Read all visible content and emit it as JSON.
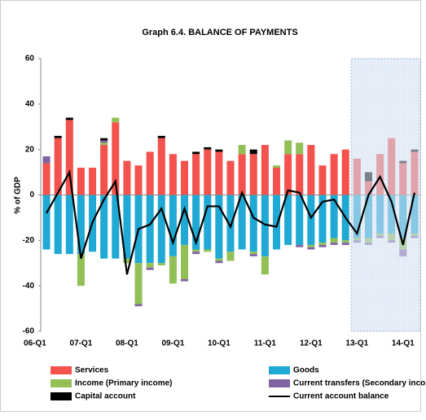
{
  "chart_data": {
    "type": "stacked-bar-line",
    "title": "Graph 6.4. BALANCE OF PAYMENTS",
    "y_label": "% of GDP",
    "categories": [
      "06-Q1",
      null,
      null,
      null,
      "07-Q1",
      null,
      null,
      null,
      "08-Q1",
      null,
      null,
      null,
      "09-Q1",
      null,
      null,
      null,
      "10-Q1",
      null,
      null,
      null,
      "11-Q1",
      null,
      null,
      null,
      "12-Q1",
      null,
      null,
      null,
      "13-Q1",
      null,
      null,
      null,
      "14-Q1"
    ],
    "forecast_start": "13-Q1",
    "series": [
      {
        "name": "Services",
        "color": "#f4524d",
        "values": [
          14,
          25,
          33,
          12,
          12,
          22,
          32,
          15,
          13,
          19,
          25,
          18,
          15,
          18,
          20,
          19,
          15,
          18,
          18,
          22,
          12,
          18,
          18,
          22,
          13,
          18,
          20,
          16,
          6,
          18,
          25,
          14,
          19
        ]
      },
      {
        "name": "Goods",
        "color": "#1fa9d4",
        "values": [
          -24,
          -26,
          -26,
          -26,
          -25,
          -28,
          -28,
          -28,
          -30,
          -30,
          -30,
          -27,
          -22,
          -24,
          -24,
          -28,
          -25,
          -24,
          -25,
          -27,
          -24,
          -22,
          -22,
          -22,
          -21,
          -19,
          -20,
          -19,
          -19,
          -17,
          -17,
          -19,
          -17
        ]
      },
      {
        "name": "Income (Primary income)",
        "color": "#92c057",
        "values": [
          0,
          0,
          0,
          -14,
          0,
          1,
          2,
          -2,
          -18,
          -2,
          -1,
          -12,
          -15,
          -1,
          -1,
          -1,
          -4,
          4,
          -1,
          -8,
          1,
          6,
          5,
          -1,
          -1,
          -2,
          -1,
          -1,
          -2,
          -1,
          -3,
          -5,
          -1
        ]
      },
      {
        "name": "Current transfers (Secondary income)",
        "color": "#8064a2",
        "values": [
          3,
          0,
          0,
          0,
          0,
          1,
          0,
          0,
          -1,
          -1,
          0,
          0,
          -1,
          -1,
          0,
          -1,
          0,
          0,
          -1,
          0,
          0,
          0,
          -1,
          -1,
          -1,
          -1,
          -1,
          -1,
          -1,
          -1,
          -1,
          -3,
          -1
        ]
      },
      {
        "name": "Capital account",
        "color": "#000000",
        "values": [
          0,
          1,
          1,
          0,
          0,
          1,
          0,
          0,
          0,
          0,
          1,
          0,
          0,
          1,
          1,
          1,
          0,
          0,
          2,
          0,
          0,
          0,
          0,
          0,
          0,
          0,
          0,
          0,
          4,
          0,
          0,
          1,
          1
        ]
      },
      {
        "name": "Current account balance",
        "color": "#000000",
        "line": true,
        "values": [
          -8,
          1,
          10,
          -28,
          -12,
          -2,
          6,
          -35,
          -15,
          -13,
          -6,
          -21,
          -6,
          -21,
          -5,
          -5,
          -14,
          1,
          -10,
          -13,
          -14,
          2,
          1,
          -10,
          -3,
          -2,
          -10,
          -17,
          0,
          8,
          -3,
          -22,
          1
        ]
      }
    ],
    "ylim": [
      -60,
      60
    ],
    "yticks": [
      -60,
      -40,
      -20,
      0,
      20,
      40,
      60
    ]
  }
}
